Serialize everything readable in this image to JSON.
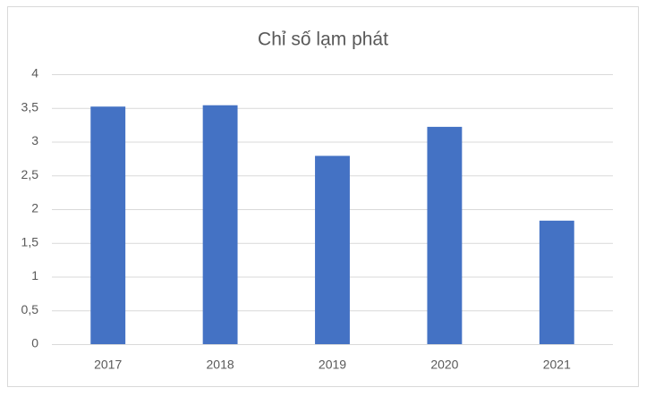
{
  "chart_data": {
    "type": "bar",
    "title": "Chỉ số lạm phát",
    "categories": [
      "2017",
      "2018",
      "2019",
      "2020",
      "2021"
    ],
    "values": [
      3.52,
      3.54,
      2.79,
      3.22,
      1.83
    ],
    "color": "#4472c4",
    "ylim": [
      0,
      4
    ],
    "yticks": [
      0,
      {
        "value": 0.5,
        "label": "0,5"
      },
      1,
      {
        "value": 1.5,
        "label": "1,5"
      },
      2,
      {
        "value": 2.5,
        "label": "2,5"
      },
      3,
      {
        "value": 3.5,
        "label": "3,5"
      },
      4
    ],
    "grid": true
  }
}
